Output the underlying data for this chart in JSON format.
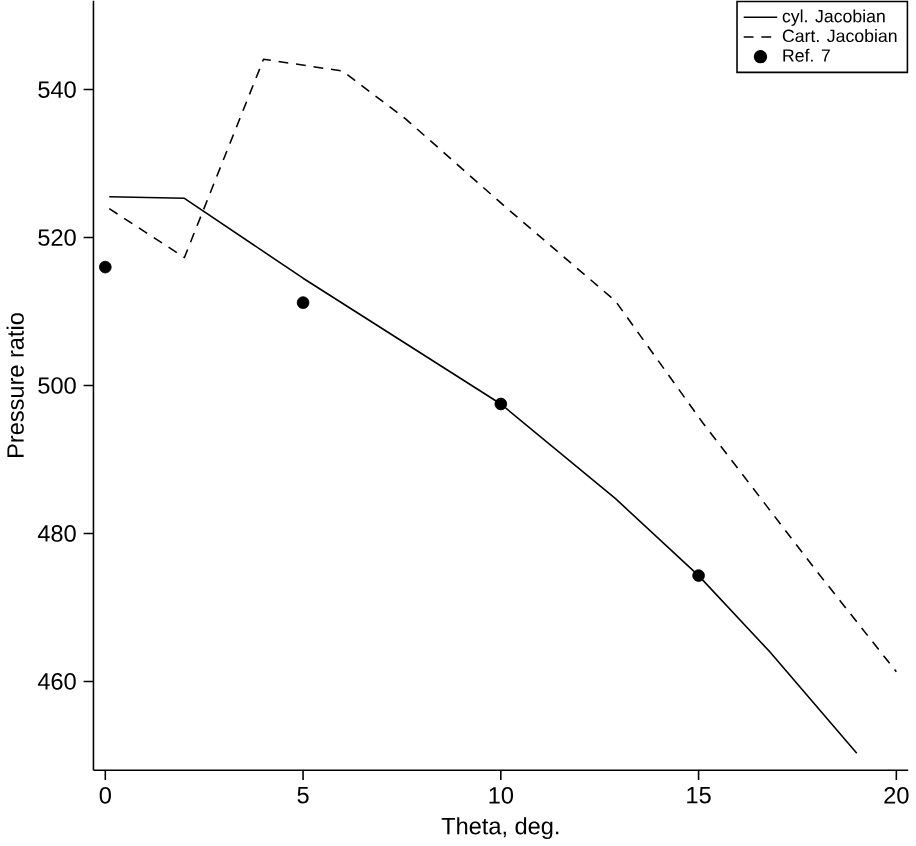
{
  "chart_data": {
    "type": "line",
    "xlabel": "Theta, deg.",
    "ylabel": "Pressure ratio",
    "xlim": [
      -0.3,
      20.3
    ],
    "ylim": [
      448,
      552
    ],
    "xticks": [
      0,
      5,
      10,
      15,
      20
    ],
    "yticks": [
      460,
      480,
      500,
      520,
      540
    ],
    "legend": "top right",
    "grid": false,
    "series": [
      {
        "name": "cyl. Jacobian",
        "color": "#000000",
        "line_style": "solid",
        "marker": "none",
        "x": [
          0.1,
          2,
          5,
          10,
          12.9,
          15,
          16.8,
          19
        ],
        "values": [
          525.5,
          525.3,
          514.5,
          497.5,
          484.7,
          474.3,
          464,
          450.3
        ]
      },
      {
        "name": "Cart. Jacobian",
        "color": "#000000",
        "line_style": "dashed",
        "marker": "none",
        "x": [
          0.1,
          2,
          4,
          6,
          7.6,
          10.1,
          12.9,
          15.1,
          18,
          20
        ],
        "values": [
          523.9,
          517.3,
          544.1,
          542.5,
          536,
          524.2,
          511.4,
          495,
          474.8,
          461.3
        ]
      },
      {
        "name": "Ref. 7",
        "type": "scatter",
        "color": "#000000",
        "marker": "circle",
        "x": [
          0,
          5,
          10,
          15
        ],
        "values": [
          516,
          511.2,
          497.5,
          474.3
        ]
      }
    ]
  }
}
